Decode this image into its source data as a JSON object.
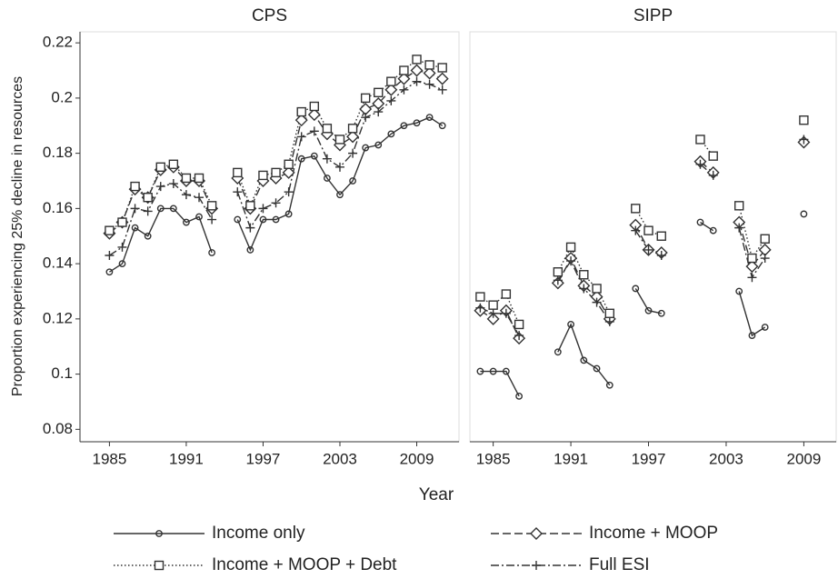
{
  "y_label": "Proportion experiencing 25% decline in resources",
  "x_label": "Year",
  "legend": [
    {
      "name": "Income only",
      "dash": "solid",
      "marker": "circle"
    },
    {
      "name": "Income + MOOP",
      "dash": "dash",
      "marker": "diamond"
    },
    {
      "name": "Income + MOOP + Debt",
      "dash": "dot",
      "marker": "square"
    },
    {
      "name": "Full ESI",
      "dash": "dashdot",
      "marker": "plus"
    }
  ],
  "color": "#333333",
  "chart_data": [
    {
      "type": "line",
      "title": "CPS",
      "x": [
        1985,
        1986,
        1987,
        1988,
        1989,
        1990,
        1991,
        1992,
        1993,
        1994,
        1995,
        1996,
        1997,
        1998,
        1999,
        2000,
        2001,
        2002,
        2003,
        2004,
        2005,
        2006,
        2007,
        2008,
        2009,
        2010,
        2011
      ],
      "series": [
        {
          "values": [
            0.137,
            0.14,
            0.153,
            0.15,
            0.16,
            0.16,
            0.155,
            0.157,
            0.144,
            null,
            0.156,
            0.145,
            0.156,
            0.156,
            0.158,
            0.178,
            0.179,
            0.171,
            0.165,
            0.17,
            0.182,
            0.183,
            0.187,
            0.19,
            0.191,
            0.193,
            0.19
          ]
        },
        {
          "values": [
            0.151,
            0.155,
            0.167,
            0.164,
            0.174,
            0.175,
            0.17,
            0.17,
            0.16,
            null,
            0.171,
            0.16,
            0.17,
            0.171,
            0.173,
            0.192,
            0.194,
            0.187,
            0.183,
            0.186,
            0.196,
            0.198,
            0.203,
            0.207,
            0.21,
            0.209,
            0.207
          ]
        },
        {
          "values": [
            0.152,
            0.155,
            0.168,
            0.164,
            0.175,
            0.176,
            0.171,
            0.171,
            0.161,
            null,
            0.173,
            0.161,
            0.172,
            0.173,
            0.176,
            0.195,
            0.197,
            0.189,
            0.185,
            0.189,
            0.2,
            0.202,
            0.206,
            0.21,
            0.214,
            0.212,
            0.211
          ]
        },
        {
          "values": [
            0.143,
            0.146,
            0.16,
            0.159,
            0.168,
            0.169,
            0.165,
            0.164,
            0.156,
            null,
            0.166,
            0.153,
            0.16,
            0.162,
            0.166,
            0.186,
            0.188,
            0.178,
            0.175,
            0.18,
            0.193,
            0.195,
            0.199,
            0.203,
            0.206,
            0.205,
            0.203
          ]
        }
      ],
      "xlim": [
        1982.7,
        2012.3
      ],
      "xticks": [
        1985,
        1991,
        1997,
        2003,
        2009
      ],
      "ylim": [
        0.0755,
        0.224
      ],
      "yticks": [
        0.08,
        0.1,
        0.12,
        0.14,
        0.16,
        0.18,
        0.2,
        0.22
      ]
    },
    {
      "type": "line",
      "title": "SIPP",
      "x": [
        1984,
        1985,
        1986,
        1987,
        1988,
        1990,
        1991,
        1992,
        1993,
        1994,
        1995,
        1996,
        1997,
        1998,
        1999,
        2001,
        2002,
        2003,
        2004,
        2005,
        2006,
        2007,
        2009
      ],
      "series": [
        {
          "values": [
            0.101,
            0.101,
            0.101,
            0.092,
            null,
            0.108,
            0.118,
            0.105,
            0.102,
            0.096,
            null,
            0.131,
            0.123,
            0.122,
            null,
            0.155,
            0.152,
            null,
            0.13,
            0.114,
            0.117,
            null,
            0.158
          ]
        },
        {
          "values": [
            0.123,
            0.12,
            0.123,
            0.113,
            null,
            0.133,
            0.142,
            0.132,
            0.128,
            0.12,
            null,
            0.154,
            0.145,
            0.144,
            null,
            0.177,
            0.173,
            null,
            0.155,
            0.139,
            0.145,
            null,
            0.184
          ]
        },
        {
          "values": [
            0.128,
            0.125,
            0.129,
            0.118,
            null,
            0.137,
            0.146,
            0.136,
            0.131,
            0.122,
            null,
            0.16,
            0.152,
            0.15,
            null,
            0.185,
            0.179,
            null,
            0.161,
            0.142,
            0.149,
            null,
            0.192
          ]
        },
        {
          "values": [
            0.124,
            0.122,
            0.122,
            0.114,
            null,
            0.134,
            0.141,
            0.131,
            0.126,
            0.119,
            null,
            0.152,
            0.145,
            0.143,
            null,
            0.176,
            0.172,
            null,
            0.153,
            0.135,
            0.142,
            null,
            0.185
          ]
        }
      ],
      "xlim": [
        1983.2,
        2011.5
      ],
      "xticks": [
        1985,
        1991,
        1997,
        2003,
        2009
      ],
      "ylim": [
        0.0755,
        0.224
      ]
    }
  ]
}
